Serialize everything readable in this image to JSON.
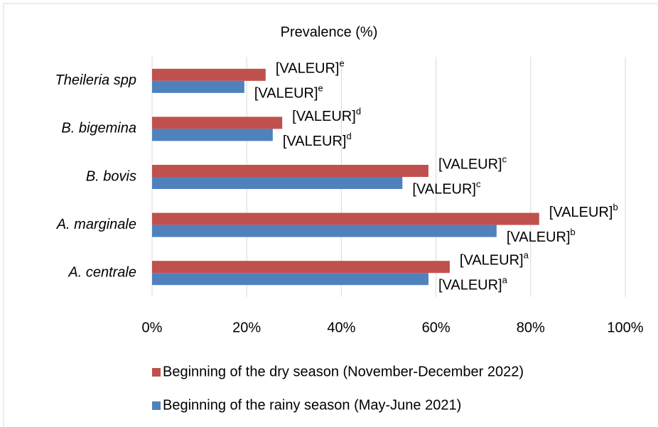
{
  "chart_data": {
    "type": "bar",
    "orientation": "horizontal",
    "title": "Prevalence (%)",
    "categories": [
      "Theileria spp",
      "B. bigemina",
      "B. bovis",
      "A. marginale",
      "A. centrale"
    ],
    "series": [
      {
        "name": "Beginning of the dry season (November-December 2022)",
        "color": "#c0504d",
        "values": [
          24.0,
          27.5,
          58.4,
          81.8,
          62.9
        ],
        "value_labels": [
          "[VALEUR]",
          "[VALEUR]",
          "[VALEUR]",
          "[VALEUR]",
          "[VALEUR]"
        ],
        "letters": [
          "e",
          "d",
          "c",
          "b",
          "a"
        ]
      },
      {
        "name": "Beginning of the rainy season (May-June 2021)",
        "color": "#4f81bd",
        "values": [
          19.5,
          25.5,
          52.9,
          72.8,
          58.4
        ],
        "value_labels": [
          "[VALEUR]",
          "[VALEUR]",
          "[VALEUR]",
          "[VALEUR]",
          "[VALEUR]"
        ],
        "letters": [
          "e",
          "d",
          "c",
          "b",
          "a"
        ]
      }
    ],
    "xlim": [
      0,
      100
    ],
    "xticks": [
      {
        "value": 0,
        "label": "0%"
      },
      {
        "value": 20,
        "label": "20%"
      },
      {
        "value": 40,
        "label": "40%"
      },
      {
        "value": 60,
        "label": "60%"
      },
      {
        "value": 80,
        "label": "80%"
      },
      {
        "value": 100,
        "label": "100%"
      }
    ],
    "grid": true,
    "legend": "bottom"
  }
}
